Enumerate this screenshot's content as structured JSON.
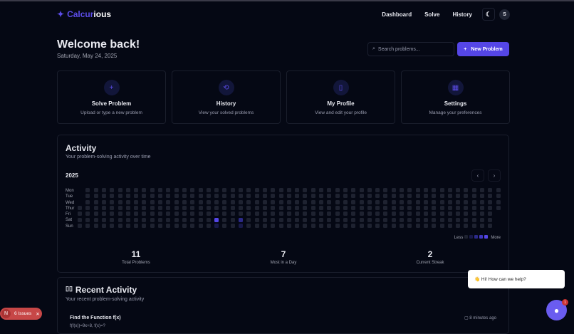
{
  "nav": {
    "brand_a": "Calcur",
    "brand_b": "ious",
    "links": [
      "Dashboard",
      "Solve",
      "History"
    ],
    "avatar": "S"
  },
  "header": {
    "title": "Welcome back!",
    "date": "Saturday, May 24, 2025",
    "search_placeholder": "Search problems...",
    "new_button": "New Problem"
  },
  "cards": [
    {
      "icon": "+",
      "title": "Solve Problem",
      "sub": "Upload or type a new problem"
    },
    {
      "icon": "⟲",
      "title": "History",
      "sub": "View your solved problems"
    },
    {
      "icon": "▯",
      "title": "My Profile",
      "sub": "View and edit your profile"
    },
    {
      "icon": "▦",
      "title": "Settings",
      "sub": "Manage your preferences"
    }
  ],
  "activity": {
    "title": "Activity",
    "subtitle": "Your problem-solving activity over time",
    "year": "2025",
    "days": [
      "Mon",
      "Tue",
      "Wed",
      "Thur",
      "Fri",
      "Sat",
      "Sun"
    ],
    "legend_less": "Less",
    "legend_more": "More",
    "levels": [
      "#1e2230",
      "#191a4a",
      "#2c2a8a",
      "#4037c0",
      "#5546e6"
    ],
    "active_cells": [
      {
        "week": 17,
        "day": 5,
        "level": 4
      },
      {
        "week": 20,
        "day": 5,
        "level": 2
      },
      {
        "week": 17,
        "day": 6,
        "level": 1
      },
      {
        "week": 20,
        "day": 6,
        "level": 1
      }
    ],
    "stats": [
      {
        "value": "11",
        "label": "Total Problems"
      },
      {
        "value": "7",
        "label": "Most in a Day"
      },
      {
        "value": "2",
        "label": "Current Streak"
      }
    ]
  },
  "recent": {
    "title": "Recent Activity",
    "subtitle": "Your recent problem-solving activity",
    "item_title": "Find the Function f(x)",
    "item_sub": "f(f(x))=9x+8, f(x)=?",
    "item_time": "8 minutes ago"
  },
  "issues": {
    "label": "6 Issues",
    "logo": "N"
  },
  "chat": {
    "bubble": "👋 Hi! How can we help?",
    "badge": "1"
  }
}
